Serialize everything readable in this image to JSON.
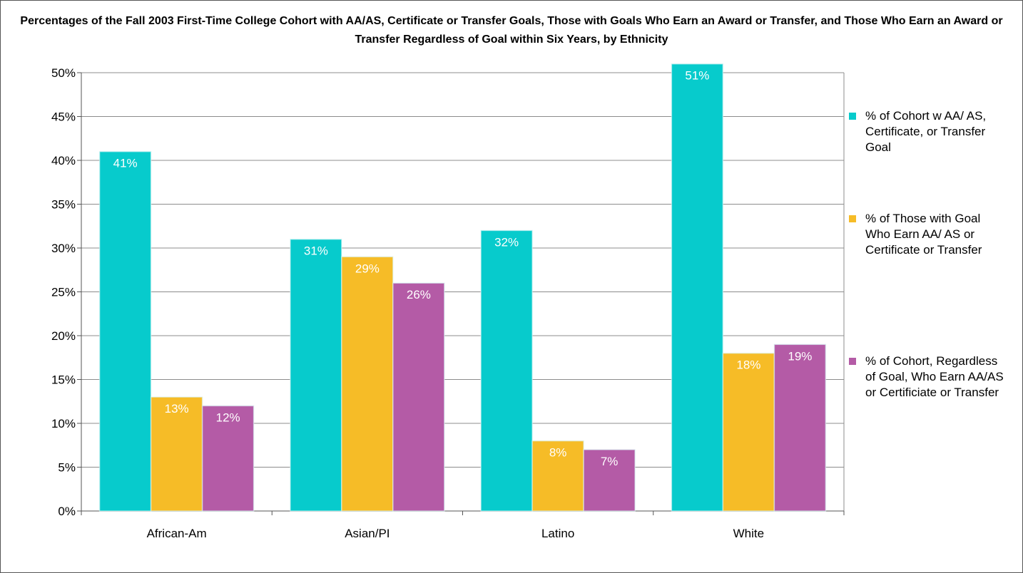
{
  "chart_data": {
    "type": "bar",
    "title": "Percentages of the Fall 2003 First-Time College Cohort with AA/AS, Certificate or Transfer Goals, Those with Goals Who Earn an Award or Transfer, and Those Who Earn an Award or Transfer Regardless of Goal within Six Years, by Ethnicity",
    "categories": [
      "African-Am",
      "Asian/PI",
      "Latino",
      "White"
    ],
    "series": [
      {
        "name": "% of Cohort w AA/ AS, Certificate, or Transfer Goal",
        "values": [
          41,
          31,
          32,
          51
        ],
        "labels": [
          "41%",
          "31%",
          "32%",
          "51%"
        ],
        "color": "#07CBCC"
      },
      {
        "name": "% of Those with Goal Who Earn AA/ AS or Certificate or Transfer",
        "values": [
          13,
          29,
          8,
          18
        ],
        "labels": [
          "13%",
          "29%",
          "8%",
          "18%"
        ],
        "color": "#F6BC27"
      },
      {
        "name": "% of Cohort, Regardless of Goal, Who Earn AA/AS or Certificiate or Transfer",
        "values": [
          12,
          26,
          7,
          19
        ],
        "labels": [
          "12%",
          "26%",
          "7%",
          "19%"
        ],
        "color": "#B45BA6"
      }
    ],
    "y_ticks": [
      "0%",
      "5%",
      "10%",
      "15%",
      "20%",
      "25%",
      "30%",
      "35%",
      "40%",
      "45%",
      "50%"
    ],
    "ylim": [
      0,
      50
    ],
    "xlabel": "",
    "ylabel": "",
    "grid": true,
    "legend_position": "right"
  }
}
